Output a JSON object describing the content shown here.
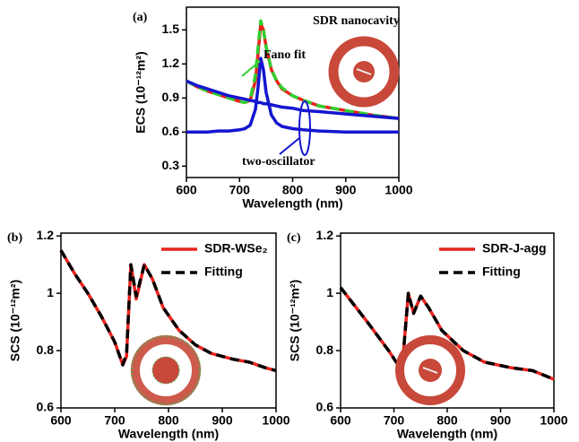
{
  "chart_data": [
    {
      "type": "line",
      "panel_label": "(a)",
      "x_label": "Wavelength (nm)",
      "y_label": "ECS (10⁻¹²m²)",
      "x": [
        600,
        620,
        640,
        660,
        680,
        700,
        710,
        720,
        730,
        735,
        740,
        745,
        750,
        760,
        770,
        780,
        800,
        820,
        850,
        900,
        950,
        1000
      ],
      "series": [
        {
          "color": "#e8231e",
          "style": "solid",
          "values": [
            1.05,
            1.0,
            0.96,
            0.93,
            0.9,
            0.87,
            0.86,
            0.88,
            1.05,
            1.3,
            1.55,
            1.5,
            1.35,
            1.15,
            1.05,
            0.98,
            0.92,
            0.88,
            0.83,
            0.79,
            0.75,
            0.72
          ]
        },
        {
          "color": "#2ed12e",
          "style": "dashed",
          "values": [
            1.05,
            1.0,
            0.96,
            0.93,
            0.9,
            0.87,
            0.86,
            0.89,
            1.1,
            1.35,
            1.58,
            1.5,
            1.35,
            1.15,
            1.05,
            0.99,
            0.92,
            0.88,
            0.83,
            0.79,
            0.75,
            0.72
          ]
        },
        {
          "color": "#1515d0",
          "style": "solid",
          "values": [
            1.05,
            1.01,
            0.98,
            0.95,
            0.92,
            0.9,
            0.89,
            0.88,
            0.87,
            0.86,
            0.86,
            0.85,
            0.85,
            0.84,
            0.83,
            0.82,
            0.81,
            0.79,
            0.78,
            0.76,
            0.74,
            0.72
          ]
        },
        {
          "color": "#1515d0",
          "style": "solid",
          "values": [
            0.6,
            0.6,
            0.6,
            0.61,
            0.61,
            0.62,
            0.63,
            0.66,
            0.8,
            1.0,
            1.25,
            1.15,
            0.95,
            0.75,
            0.68,
            0.65,
            0.63,
            0.62,
            0.61,
            0.6,
            0.6,
            0.6
          ]
        }
      ],
      "annotations": [
        {
          "text": "SDR nanocavity",
          "color": "#000000"
        },
        {
          "text": "Fano fit",
          "color": "#2ed12e"
        },
        {
          "text": "two-oscillator",
          "color": "#1515d0"
        }
      ],
      "xlim": [
        600,
        1000
      ],
      "ylim": [
        0.2,
        1.7
      ],
      "xticks": [
        600,
        700,
        800,
        900,
        1000
      ],
      "yticks": [
        0.3,
        0.6,
        0.9,
        1.2,
        1.5
      ]
    },
    {
      "type": "line",
      "panel_label": "(b)",
      "x_label": "Wavelength (nm)",
      "y_label": "SCS (10⁻¹²m²)",
      "x": [
        600,
        625,
        650,
        675,
        700,
        715,
        722,
        730,
        740,
        755,
        770,
        790,
        820,
        850,
        880,
        920,
        950,
        980,
        1000
      ],
      "series": [
        {
          "name": "SDR-WSe₂",
          "color": "#e8231e",
          "style": "solid",
          "values": [
            1.15,
            1.07,
            1.0,
            0.92,
            0.83,
            0.75,
            0.78,
            1.1,
            0.98,
            1.1,
            1.05,
            0.95,
            0.87,
            0.82,
            0.79,
            0.77,
            0.76,
            0.74,
            0.73
          ]
        },
        {
          "name": "Fitting",
          "color": "#000000",
          "style": "dashed",
          "values": [
            1.15,
            1.07,
            1.0,
            0.92,
            0.83,
            0.75,
            0.79,
            1.1,
            0.99,
            1.1,
            1.05,
            0.95,
            0.87,
            0.82,
            0.79,
            0.77,
            0.76,
            0.74,
            0.73
          ]
        }
      ],
      "legend": "top-right",
      "xlim": [
        600,
        1000
      ],
      "ylim": [
        0.6,
        1.21
      ],
      "xticks": [
        600,
        700,
        800,
        900,
        1000
      ],
      "yticks": [
        0.6,
        0.8,
        1.0,
        1.2
      ]
    },
    {
      "type": "line",
      "panel_label": "(c)",
      "x_label": "Wavelength (nm)",
      "y_label": "SCS (10⁻¹²m²)",
      "x": [
        600,
        650,
        690,
        715,
        727,
        737,
        750,
        765,
        790,
        830,
        870,
        920,
        960,
        1000
      ],
      "series": [
        {
          "name": "SDR-J-agg",
          "color": "#e8231e",
          "style": "solid",
          "values": [
            1.02,
            0.9,
            0.8,
            0.73,
            1.0,
            0.93,
            0.99,
            0.95,
            0.87,
            0.8,
            0.76,
            0.74,
            0.73,
            0.7
          ]
        },
        {
          "name": "Fitting",
          "color": "#000000",
          "style": "dashed",
          "values": [
            1.02,
            0.9,
            0.8,
            0.73,
            1.0,
            0.93,
            0.99,
            0.95,
            0.87,
            0.8,
            0.76,
            0.74,
            0.73,
            0.7
          ]
        }
      ],
      "legend": "top-right",
      "xlim": [
        600,
        1000
      ],
      "ylim": [
        0.6,
        1.21
      ],
      "xticks": [
        600,
        700,
        800,
        900,
        1000
      ],
      "yticks": [
        0.6,
        0.8,
        1.0,
        1.2
      ]
    }
  ]
}
